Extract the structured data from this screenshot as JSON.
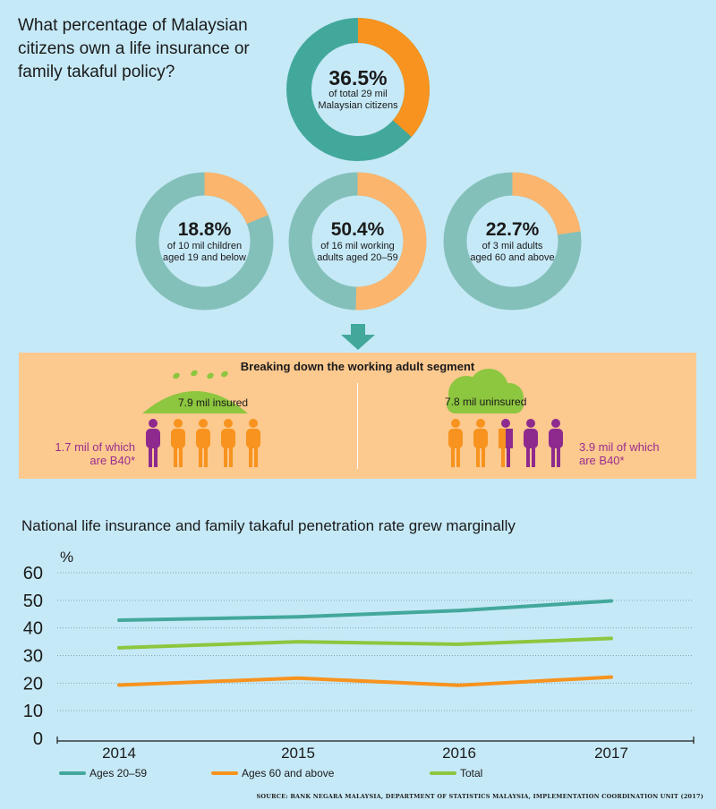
{
  "question": "What percentage of Malaysian citizens own a life insurance or family takaful policy?",
  "colors": {
    "teal_dark": "#43a89c",
    "orange_dark": "#f7931e",
    "teal_light": "#84c0ba",
    "orange_light": "#fbb56d",
    "green": "#8dc63f",
    "purple": "#8e2a8e",
    "breakdown_bg": "#fcc98f"
  },
  "donuts": [
    {
      "pct": "36.5%",
      "desc_line1": "of total 29 mil",
      "desc_line2": "Malaysian citizens",
      "value": 36.5
    },
    {
      "pct": "18.8%",
      "desc_line1": "of 10 mil children",
      "desc_line2": "aged 19 and below",
      "value": 18.8
    },
    {
      "pct": "50.4%",
      "desc_line1": "of 16 mil working",
      "desc_line2": "adults aged 20–59",
      "value": 50.4
    },
    {
      "pct": "22.7%",
      "desc_line1": "of 3 mil adults",
      "desc_line2": "aged 60 and above",
      "value": 22.7
    }
  ],
  "breakdown": {
    "title": "Breaking down the working adult segment",
    "insured_label": "7.9 mil insured",
    "insured_b40_line1": "1.7 mil of which",
    "insured_b40_line2": "are B40*",
    "uninsured_label": "7.8 mil uninsured",
    "uninsured_b40_line1": "3.9 mil of which",
    "uninsured_b40_line2": "are B40*",
    "icons": [
      "umbrella-icon",
      "cloud-icon",
      "person-icon"
    ]
  },
  "line_title": "National life insurance and family takaful penetration rate grew marginally",
  "chart_data": {
    "type": "line",
    "title": "National life insurance and family takaful penetration rate grew marginally",
    "ylabel": "%",
    "ylim": [
      0,
      60
    ],
    "yticks": [
      "0",
      "10",
      "20",
      "30",
      "40",
      "50",
      "60"
    ],
    "x": [
      "2014",
      "2015",
      "2016",
      "2017"
    ],
    "grid": true,
    "legend_position": "bottom",
    "series": [
      {
        "name": "Ages 20–59",
        "values": [
          42.8,
          44.0,
          46.3,
          49.8
        ],
        "color": "#43a89c"
      },
      {
        "name": "Ages 60 and above",
        "values": [
          19.3,
          21.8,
          19.2,
          22.2
        ],
        "color": "#f7931e"
      },
      {
        "name": "Total",
        "values": [
          32.8,
          35.0,
          34.1,
          36.2
        ],
        "color": "#8dc63f"
      }
    ]
  },
  "source": "SOURCE: BANK NEGARA MALAYSIA, DEPARTMENT OF STATISTICS MALAYSIA, IMPLEMENTATION COORDINATION UNIT (2017)"
}
